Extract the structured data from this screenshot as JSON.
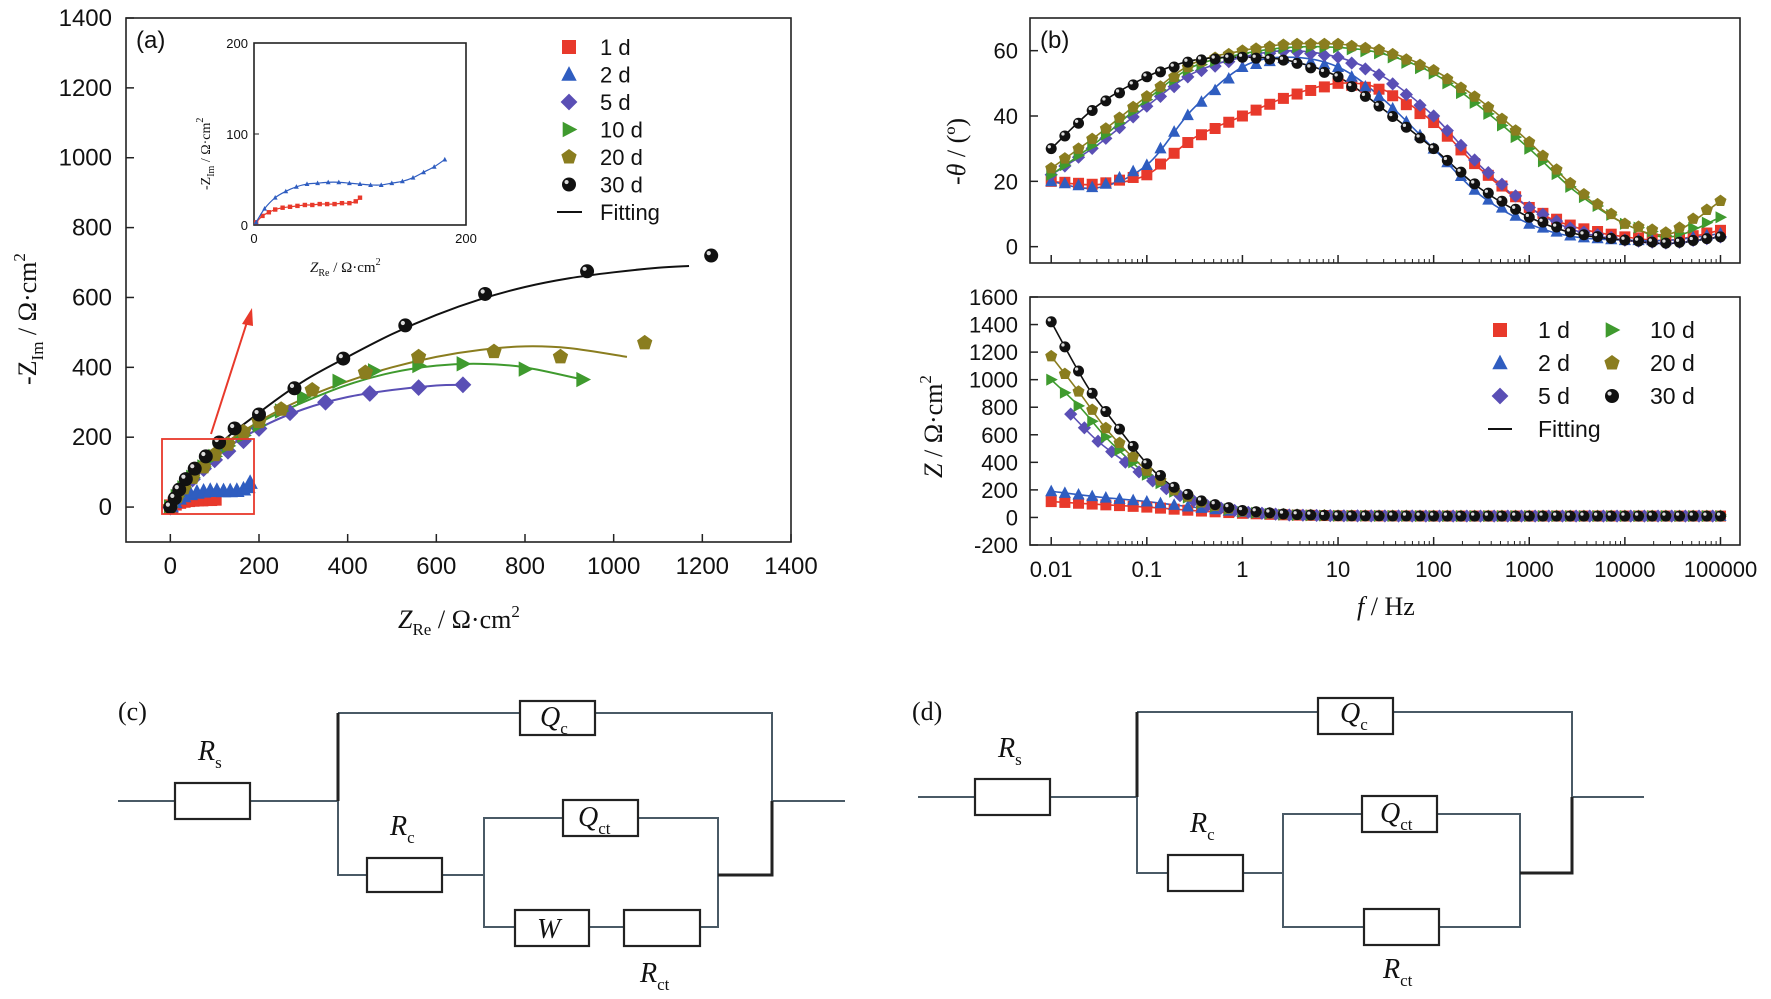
{
  "colors": {
    "1 d": "#e8392b",
    "2 d": "#2f5dc0",
    "5 d": "#5a4fb5",
    "10 d": "#3f9a2e",
    "20 d": "#8a7d1f",
    "30 d": "#111111",
    "fit": "#111111",
    "arrow": "#e8392b",
    "box": "#e8392b"
  },
  "chart_data": [
    {
      "panel": "(a)",
      "type": "scatter",
      "xlabel_main": "Z",
      "xlabel_sub": "Re",
      "xlabel_unit": " / Ω·cm",
      "xlabel_sup": "2",
      "ylabel_pre": "-Z",
      "ylabel_sub": "Im",
      "ylabel_unit": " / Ω·cm",
      "ylabel_sup": "2",
      "xlim": [
        -100,
        1400
      ],
      "ylim": [
        -100,
        1400
      ],
      "xticks": [
        "0",
        "200",
        "400",
        "600",
        "800",
        "1000",
        "1200",
        "1400"
      ],
      "yticks": [
        "0",
        "200",
        "400",
        "600",
        "800",
        "1000",
        "1200",
        "1400"
      ],
      "legend": [
        "1 d",
        "2 d",
        "5 d",
        "10 d",
        "20 d",
        "30 d",
        "Fitting"
      ],
      "series": [
        {
          "name": "1 d",
          "marker": "square",
          "x": [
            2,
            10,
            20,
            30,
            40,
            50,
            60,
            70,
            80,
            90,
            100
          ],
          "y": [
            2,
            10,
            15,
            18,
            20,
            21,
            22,
            22,
            23,
            23,
            24
          ]
        },
        {
          "name": "2 d",
          "marker": "triangle",
          "x": [
            2,
            10,
            20,
            30,
            45,
            60,
            75,
            90,
            105,
            120,
            135,
            150,
            165,
            175,
            180
          ],
          "y": [
            3,
            15,
            25,
            32,
            38,
            42,
            45,
            47,
            47,
            46,
            46,
            47,
            51,
            58,
            70
          ]
        },
        {
          "name": "5 d",
          "marker": "diamond",
          "x": [
            0,
            15,
            30,
            50,
            75,
            100,
            130,
            165,
            200,
            270,
            350,
            450,
            560,
            660
          ],
          "y": [
            0,
            30,
            55,
            80,
            110,
            135,
            160,
            190,
            225,
            270,
            300,
            325,
            342,
            350
          ]
        },
        {
          "name": "10 d",
          "marker": "right-triangle",
          "x": [
            0,
            15,
            30,
            50,
            75,
            100,
            130,
            165,
            200,
            250,
            300,
            380,
            460,
            560,
            660,
            800,
            930
          ],
          "y": [
            0,
            30,
            55,
            85,
            115,
            145,
            175,
            205,
            235,
            275,
            315,
            360,
            390,
            405,
            410,
            395,
            365
          ]
        },
        {
          "name": "20 d",
          "marker": "pentagon",
          "x": [
            0,
            15,
            30,
            50,
            75,
            100,
            130,
            165,
            200,
            250,
            320,
            440,
            560,
            730,
            880,
            1070
          ],
          "y": [
            0,
            30,
            55,
            85,
            115,
            150,
            180,
            215,
            245,
            280,
            335,
            385,
            430,
            445,
            430,
            470
          ]
        },
        {
          "name": "30 d",
          "marker": "sphere",
          "x": [
            0,
            10,
            20,
            35,
            55,
            80,
            110,
            145,
            200,
            280,
            390,
            530,
            710,
            940,
            1220
          ],
          "y": [
            0,
            25,
            50,
            80,
            110,
            145,
            185,
            225,
            265,
            340,
            425,
            520,
            610,
            675,
            720
          ]
        }
      ],
      "fits": [
        {
          "series": "5 d",
          "x": [
            0,
            100,
            200,
            300,
            400,
            500,
            600,
            660
          ],
          "y": [
            0,
            140,
            225,
            280,
            315,
            335,
            348,
            350
          ]
        },
        {
          "series": "10 d",
          "x": [
            0,
            100,
            200,
            300,
            400,
            500,
            600,
            700,
            800,
            930
          ],
          "y": [
            0,
            150,
            240,
            300,
            350,
            385,
            405,
            410,
            400,
            365
          ]
        },
        {
          "series": "20 d",
          "x": [
            0,
            100,
            200,
            300,
            400,
            500,
            600,
            700,
            800,
            900,
            1030
          ],
          "y": [
            0,
            155,
            245,
            310,
            360,
            400,
            430,
            450,
            460,
            455,
            430
          ]
        },
        {
          "series": "30 d",
          "x": [
            0,
            100,
            200,
            300,
            400,
            500,
            600,
            700,
            800,
            900,
            1000,
            1100,
            1170
          ],
          "y": [
            0,
            165,
            270,
            360,
            430,
            495,
            550,
            595,
            630,
            655,
            672,
            685,
            690
          ]
        }
      ],
      "inset": {
        "xlim": [
          0,
          200
        ],
        "ylim": [
          0,
          200
        ],
        "xticks": [
          "0",
          "200"
        ],
        "yticks": [
          "0",
          "100",
          "200"
        ],
        "xlabel_main": "Z",
        "xlabel_sub": "Re",
        "xlabel_unit": " / Ω·cm",
        "xlabel_sup": "2",
        "ylabel_pre": "-Z",
        "ylabel_sub": "Im",
        "ylabel_unit": " / Ω·cm",
        "ylabel_sup": "2",
        "series": [
          {
            "name": "1 d",
            "x": [
              2,
              8,
              14,
              20,
              27,
              34,
              41,
              48,
              55,
              62,
              69,
              76,
              83,
              90,
              96,
              100
            ],
            "y": [
              3,
              10,
              14,
              17,
              19,
              20,
              21,
              22,
              22,
              23,
              23,
              23,
              24,
              24,
              26,
              30
            ]
          },
          {
            "name": "2 d",
            "x": [
              2,
              10,
              20,
              30,
              40,
              50,
              60,
              70,
              80,
              90,
              100,
              110,
              120,
              130,
              140,
              150,
              160,
              170,
              180
            ],
            "y": [
              3,
              18,
              30,
              37,
              42,
              45,
              46,
              47,
              47,
              46,
              45,
              44,
              44,
              46,
              48,
              52,
              58,
              64,
              72
            ]
          }
        ]
      }
    },
    {
      "panel": "(b)",
      "type": "line",
      "xlabel_main": "f",
      "xlabel_unit": " / Hz",
      "x_scale": "log",
      "xticks": [
        "0.01",
        "0.1",
        "1",
        "10",
        "100",
        "1000",
        "10000",
        "100000"
      ],
      "top": {
        "ylabel_main": "-θ",
        "ylabel_unit": " / (º)",
        "ylim": [
          -5,
          70
        ],
        "yticks": [
          "0",
          "20",
          "40",
          "60"
        ],
        "series": [
          {
            "name": "1 d",
            "x": [
              0.01,
              0.03,
              0.1,
              0.3,
              1,
              3,
              10,
              30,
              100,
              300,
              1000,
              3000,
              10000,
              30000,
              100000
            ],
            "y": [
              20,
              19,
              22,
              33,
              40,
              46,
              50,
              48,
              38,
              24,
              12,
              6,
              3,
              2,
              5
            ]
          },
          {
            "name": "2 d",
            "x": [
              0.01,
              0.03,
              0.1,
              0.3,
              1,
              3,
              10,
              30,
              100,
              300,
              1000,
              3000,
              10000,
              30000,
              100000
            ],
            "y": [
              20,
              18,
              25,
              42,
              55,
              58,
              55,
              45,
              30,
              16,
              7,
              3,
              2,
              2,
              4
            ]
          },
          {
            "name": "5 d",
            "x": [
              0.01,
              0.03,
              0.1,
              0.3,
              1,
              3,
              10,
              30,
              100,
              300,
              1000,
              3000,
              10000,
              30000,
              100000
            ],
            "y": [
              22,
              31,
              43,
              53,
              58,
              60,
              58,
              52,
              40,
              25,
              12,
              5,
              2,
              1,
              3
            ]
          },
          {
            "name": "10 d",
            "x": [
              0.01,
              0.03,
              0.1,
              0.3,
              1,
              3,
              10,
              30,
              100,
              300,
              1000,
              3000,
              10000,
              30000,
              100000
            ],
            "y": [
              22,
              32,
              45,
              55,
              59,
              61,
              61,
              59,
              53,
              43,
              30,
              17,
              7,
              3,
              9
            ]
          },
          {
            "name": "20 d",
            "x": [
              0.01,
              0.03,
              0.1,
              0.3,
              1,
              3,
              10,
              30,
              100,
              300,
              1000,
              3000,
              10000,
              30000,
              100000
            ],
            "y": [
              24,
              34,
              46,
              56,
              60,
              62,
              62,
              60,
              54,
              45,
              32,
              18,
              7,
              4,
              14
            ]
          },
          {
            "name": "30 d",
            "x": [
              0.01,
              0.03,
              0.1,
              0.3,
              1,
              3,
              10,
              30,
              100,
              300,
              1000,
              3000,
              10000,
              30000,
              100000
            ],
            "y": [
              30,
              43,
              52,
              57,
              58,
              57,
              52,
              42,
              30,
              18,
              9,
              4,
              2,
              1,
              3
            ]
          }
        ]
      },
      "bottom": {
        "ylabel_main": "Z",
        "ylabel_unit": " / Ω·cm",
        "ylabel_sup": "2",
        "ylim": [
          -200,
          1600
        ],
        "yticks": [
          "-200",
          "0",
          "200",
          "400",
          "600",
          "800",
          "1000",
          "1200",
          "1400",
          "1600"
        ],
        "legend": [
          "1 d",
          "10 d",
          "2 d",
          "20 d",
          "5 d",
          "30 d",
          "Fitting"
        ],
        "series": [
          {
            "name": "1 d",
            "x": [
              0.01,
              0.03,
              0.1,
              0.3,
              1,
              3,
              10,
              100,
              1000,
              10000,
              100000
            ],
            "y": [
              115,
              95,
              75,
              50,
              30,
              18,
              12,
              10,
              10,
              10,
              10
            ]
          },
          {
            "name": "2 d",
            "x": [
              0.01,
              0.03,
              0.1,
              0.3,
              1,
              3,
              10,
              100,
              1000,
              10000,
              100000
            ],
            "y": [
              190,
              150,
              115,
              75,
              40,
              20,
              12,
              10,
              10,
              10,
              10
            ]
          },
          {
            "name": "5 d",
            "x": [
              0.016,
              0.03,
              0.06,
              0.1,
              0.2,
              0.4,
              1,
              3,
              10,
              100,
              1000,
              10000,
              100000
            ],
            "y": [
              750,
              560,
              400,
              290,
              170,
              90,
              40,
              18,
              12,
              10,
              10,
              10,
              10
            ]
          },
          {
            "name": "10 d",
            "x": [
              0.01,
              0.02,
              0.04,
              0.1,
              0.2,
              0.4,
              1,
              3,
              10,
              100,
              1000,
              10000,
              100000
            ],
            "y": [
              1000,
              800,
              560,
              310,
              180,
              95,
              40,
              18,
              12,
              10,
              10,
              10,
              10
            ]
          },
          {
            "name": "20 d",
            "x": [
              0.01,
              0.02,
              0.04,
              0.1,
              0.2,
              0.4,
              1,
              3,
              10,
              100,
              1000,
              10000,
              100000
            ],
            "y": [
              1170,
              900,
              620,
              340,
              190,
              100,
              45,
              20,
              12,
              10,
              10,
              10,
              10
            ]
          },
          {
            "name": "30 d",
            "x": [
              0.01,
              0.016,
              0.025,
              0.04,
              0.1,
              0.2,
              0.4,
              1,
              3,
              10,
              100,
              1000,
              10000,
              100000
            ],
            "y": [
              1420,
              1160,
              930,
              740,
              390,
              210,
              110,
              50,
              22,
              12,
              10,
              10,
              10,
              10
            ]
          }
        ]
      }
    }
  ],
  "circuits": [
    {
      "panel": "(c)",
      "Rs": {
        "main": "R",
        "sub": "s"
      },
      "Qc": {
        "main": "Q",
        "sub": "c"
      },
      "Rc": {
        "main": "R",
        "sub": "c"
      },
      "Qct": {
        "main": "Q",
        "sub": "ct"
      },
      "W": "W",
      "Rct": {
        "main": "R",
        "sub": "ct"
      }
    },
    {
      "panel": "(d)",
      "Rs": {
        "main": "R",
        "sub": "s"
      },
      "Qc": {
        "main": "Q",
        "sub": "c"
      },
      "Rc": {
        "main": "R",
        "sub": "c"
      },
      "Qct": {
        "main": "Q",
        "sub": "ct"
      },
      "Rct": {
        "main": "R",
        "sub": "ct"
      }
    }
  ]
}
